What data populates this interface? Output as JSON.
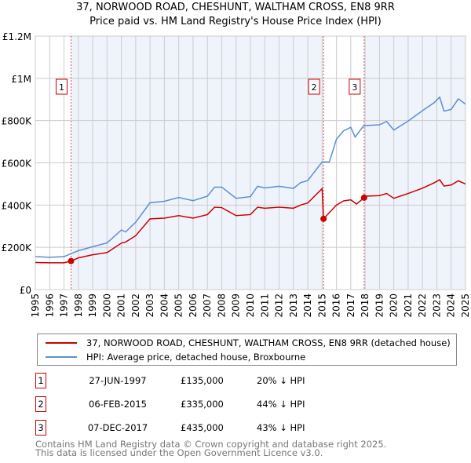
{
  "title_line1": "37, NORWOOD ROAD, CHESHUNT, WALTHAM CROSS, EN8 9RR",
  "title_line2": "Price paid vs. HM Land Registry's House Price Index (HPI)",
  "chart_data": {
    "type": "line",
    "xlim": [
      1995,
      2025
    ],
    "ylim": [
      0,
      1200000
    ],
    "yticks": [
      {
        "v": 0,
        "label": "£0"
      },
      {
        "v": 200000,
        "label": "£200K"
      },
      {
        "v": 400000,
        "label": "£400K"
      },
      {
        "v": 600000,
        "label": "£600K"
      },
      {
        "v": 800000,
        "label": "£800K"
      },
      {
        "v": 1000000,
        "label": "£1M"
      },
      {
        "v": 1200000,
        "label": "£1.2M"
      }
    ],
    "xticks": [
      1995,
      1996,
      1997,
      1998,
      1999,
      2000,
      2001,
      2002,
      2003,
      2004,
      2005,
      2006,
      2007,
      2008,
      2009,
      2010,
      2011,
      2012,
      2013,
      2014,
      2015,
      2016,
      2017,
      2018,
      2019,
      2020,
      2021,
      2022,
      2023,
      2024,
      2025
    ],
    "grid": true,
    "series": [
      {
        "name": "37, NORWOOD ROAD, CHESHUNT, WALTHAM CROSS, EN8 9RR (detached house)",
        "color": "#cc0000",
        "points": [
          [
            1995,
            128000
          ],
          [
            1996,
            127000
          ],
          [
            1997,
            127000
          ],
          [
            1997.49,
            135000
          ],
          [
            1998,
            150000
          ],
          [
            1999,
            165000
          ],
          [
            2000,
            175000
          ],
          [
            2001,
            220000
          ],
          [
            2001.3,
            225000
          ],
          [
            2002,
            255000
          ],
          [
            2003,
            335000
          ],
          [
            2004,
            338000
          ],
          [
            2005,
            350000
          ],
          [
            2006,
            338000
          ],
          [
            2007,
            355000
          ],
          [
            2007.5,
            390000
          ],
          [
            2008,
            388000
          ],
          [
            2009,
            350000
          ],
          [
            2010,
            355000
          ],
          [
            2010.5,
            390000
          ],
          [
            2011,
            385000
          ],
          [
            2012,
            390000
          ],
          [
            2013,
            385000
          ],
          [
            2013.5,
            400000
          ],
          [
            2014,
            410000
          ],
          [
            2015.0,
            478000
          ],
          [
            2015.1,
            335000
          ],
          [
            2016,
            400000
          ],
          [
            2016.5,
            420000
          ],
          [
            2017,
            425000
          ],
          [
            2017.4,
            405000
          ],
          [
            2017.93,
            435000
          ],
          [
            2018,
            442000
          ],
          [
            2019,
            445000
          ],
          [
            2019.5,
            455000
          ],
          [
            2020,
            432000
          ],
          [
            2021,
            455000
          ],
          [
            2022,
            480000
          ],
          [
            2022.8,
            505000
          ],
          [
            2023.2,
            520000
          ],
          [
            2023.5,
            490000
          ],
          [
            2024,
            495000
          ],
          [
            2024.5,
            515000
          ],
          [
            2025,
            500000
          ]
        ]
      },
      {
        "name": "HPI: Average price, detached house, Broxbourne",
        "color": "#5b8fd0",
        "points": [
          [
            1995,
            156000
          ],
          [
            1996,
            153000
          ],
          [
            1997,
            156000
          ],
          [
            1997.5,
            170000
          ],
          [
            1998,
            184000
          ],
          [
            1999,
            203000
          ],
          [
            2000,
            221000
          ],
          [
            2001,
            282000
          ],
          [
            2001.3,
            273000
          ],
          [
            2002,
            319000
          ],
          [
            2003,
            411000
          ],
          [
            2004,
            418000
          ],
          [
            2005,
            436000
          ],
          [
            2006,
            421000
          ],
          [
            2007,
            442000
          ],
          [
            2007.5,
            485000
          ],
          [
            2008,
            485000
          ],
          [
            2009,
            432000
          ],
          [
            2010,
            440000
          ],
          [
            2010.5,
            489000
          ],
          [
            2011,
            481000
          ],
          [
            2012,
            489000
          ],
          [
            2013,
            479000
          ],
          [
            2013.5,
            506000
          ],
          [
            2014,
            516000
          ],
          [
            2015,
            604000
          ],
          [
            2015.5,
            604000
          ],
          [
            2016,
            712000
          ],
          [
            2016.5,
            752000
          ],
          [
            2017,
            768000
          ],
          [
            2017.3,
            722000
          ],
          [
            2017.9,
            776000
          ],
          [
            2019,
            780000
          ],
          [
            2019.5,
            796000
          ],
          [
            2020,
            755000
          ],
          [
            2021,
            798000
          ],
          [
            2022,
            847000
          ],
          [
            2022.8,
            884000
          ],
          [
            2023.2,
            911000
          ],
          [
            2023.5,
            845000
          ],
          [
            2024,
            853000
          ],
          [
            2024.5,
            903000
          ],
          [
            2025,
            878000
          ]
        ]
      }
    ],
    "sales": [
      {
        "n": "1",
        "x": 1997.49,
        "price": 135000,
        "date": "27-JUN-1997",
        "price_label": "£135,000",
        "pct": "20% ↓ HPI"
      },
      {
        "n": "2",
        "x": 2015.1,
        "price": 335000,
        "date": "06-FEB-2015",
        "price_label": "£335,000",
        "pct": "44% ↓ HPI"
      },
      {
        "n": "3",
        "x": 2017.93,
        "price": 435000,
        "date": "07-DEC-2017",
        "price_label": "£435,000",
        "pct": "43% ↓ HPI"
      }
    ],
    "legend_position": "below"
  },
  "legend": {
    "property": "37, NORWOOD ROAD, CHESHUNT, WALTHAM CROSS, EN8 9RR (detached house)",
    "hpi": "HPI: Average price, detached house, Broxbourne"
  },
  "footer": {
    "line1": "Contains HM Land Registry data © Crown copyright and database right 2025.",
    "line2": "This data is licensed under the Open Government Licence v3.0."
  }
}
